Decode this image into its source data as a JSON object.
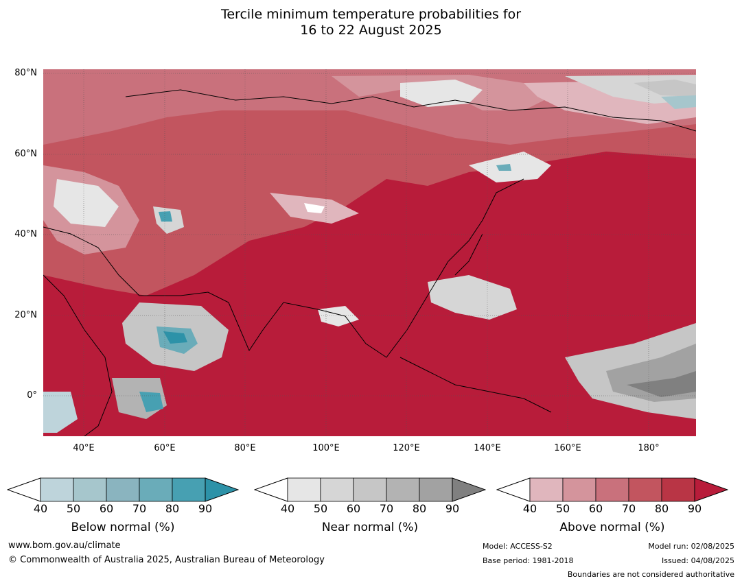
{
  "title": {
    "line1": "Tercile minimum temperature probabilities for",
    "line2": "16 to 22 August 2025"
  },
  "map": {
    "lat_labels": [
      "80°N",
      "60°N",
      "40°N",
      "20°N",
      "0°"
    ],
    "lon_labels": [
      "40°E",
      "60°E",
      "80°E",
      "100°E",
      "120°E",
      "140°E",
      "160°E",
      "180°"
    ],
    "background_color": "#b81c3a"
  },
  "colorbars": {
    "below": {
      "title": "Below normal (%)",
      "ticks": [
        "40",
        "50",
        "60",
        "70",
        "80",
        "90"
      ],
      "colors": [
        "#bed4db",
        "#a6c6cc",
        "#8ab4bf",
        "#6aacb9",
        "#47a0b2",
        "#2d92a8"
      ]
    },
    "near": {
      "title": "Near normal (%)",
      "ticks": [
        "40",
        "50",
        "60",
        "70",
        "80",
        "90"
      ],
      "colors": [
        "#e6e6e6",
        "#d6d6d6",
        "#c6c6c6",
        "#b3b3b3",
        "#a2a2a2",
        "#808080"
      ]
    },
    "above": {
      "title": "Above normal (%)",
      "ticks": [
        "40",
        "50",
        "60",
        "70",
        "80",
        "90"
      ],
      "colors": [
        "#e0b6bd",
        "#d4949c",
        "#c9717c",
        "#c2555f",
        "#b93545",
        "#b81c3a"
      ]
    }
  },
  "footer": {
    "website": "www.bom.gov.au/climate",
    "copyright": "© Commonwealth of Australia 2025, Australian Bureau of Meteorology",
    "model": "Model: ACCESS-S2",
    "base_period": "Base period: 1981-2018",
    "model_run": "Model run: 02/08/2025",
    "issued": "Issued: 04/08/2025",
    "disclaimer": "Boundaries are not considered authoritative"
  }
}
